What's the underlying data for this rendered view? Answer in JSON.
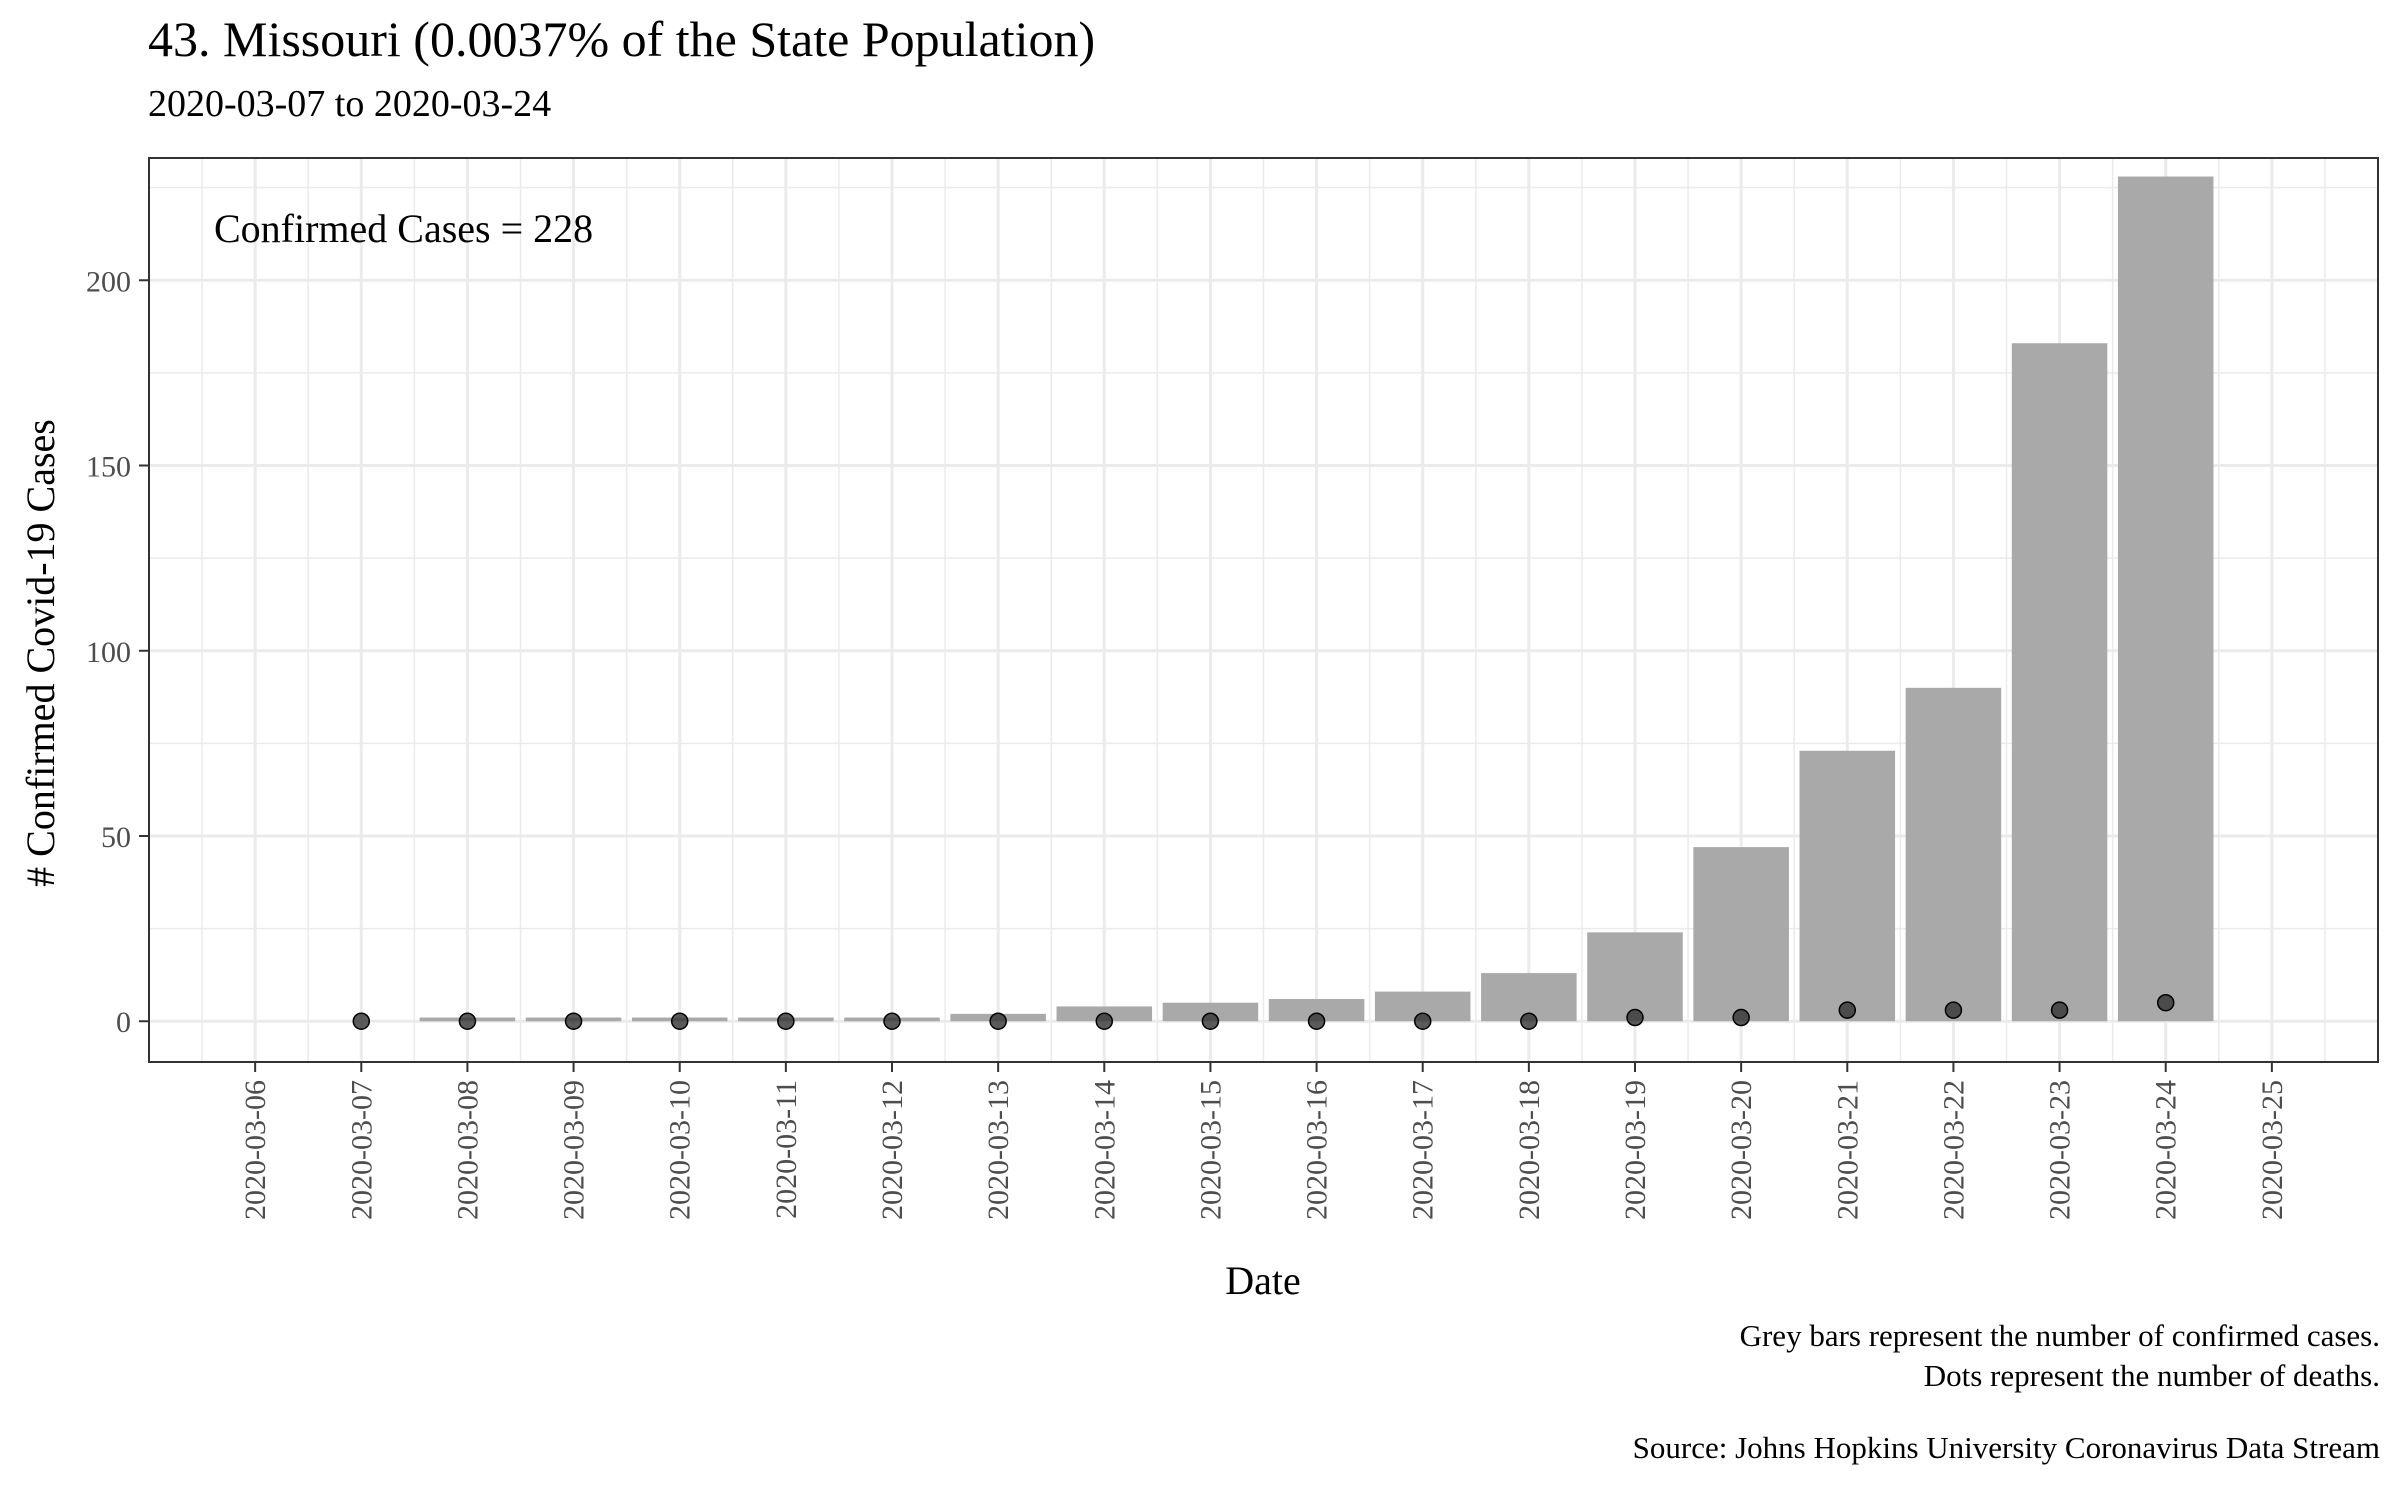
{
  "chart_data": {
    "type": "bar",
    "title": "43. Missouri (0.0037% of the State Population)",
    "subtitle": "2020-03-07 to 2020-03-24",
    "xlabel": "Date",
    "ylabel": "# Confirmed Covid-19 Cases",
    "annotation": "Confirmed Cases = 228",
    "ylim": [
      -11,
      233
    ],
    "yticks": [
      0,
      50,
      100,
      150,
      200
    ],
    "xlim": [
      "2020-03-05",
      "2020-03-26"
    ],
    "xticks": [
      "2020-03-06",
      "2020-03-07",
      "2020-03-08",
      "2020-03-09",
      "2020-03-10",
      "2020-03-11",
      "2020-03-12",
      "2020-03-13",
      "2020-03-14",
      "2020-03-15",
      "2020-03-16",
      "2020-03-17",
      "2020-03-18",
      "2020-03-19",
      "2020-03-20",
      "2020-03-21",
      "2020-03-22",
      "2020-03-23",
      "2020-03-24",
      "2020-03-25"
    ],
    "categories": [
      "2020-03-07",
      "2020-03-08",
      "2020-03-09",
      "2020-03-10",
      "2020-03-11",
      "2020-03-12",
      "2020-03-13",
      "2020-03-14",
      "2020-03-15",
      "2020-03-16",
      "2020-03-17",
      "2020-03-18",
      "2020-03-19",
      "2020-03-20",
      "2020-03-21",
      "2020-03-22",
      "2020-03-23",
      "2020-03-24"
    ],
    "series": [
      {
        "type": "bar",
        "values": [
          0,
          1,
          1,
          1,
          1,
          1,
          2,
          4,
          5,
          6,
          8,
          13,
          24,
          47,
          73,
          90,
          183,
          228
        ]
      },
      {
        "type": "scatter",
        "values": [
          0,
          0,
          0,
          0,
          0,
          0,
          0,
          0,
          0,
          0,
          0,
          0,
          1,
          1,
          3,
          3,
          3,
          5
        ]
      }
    ],
    "grid": true,
    "colors": {
      "bar": "#a9a9a9",
      "dot": "#333333",
      "grid": "#ebebeb",
      "panel_border": "#333333",
      "tick_label": "#4d4d4d"
    }
  },
  "caption_lines": [
    "Grey bars represent the number of confirmed cases.",
    "Dots represent the number of deaths."
  ],
  "source": "Source: Johns Hopkins University Coronavirus Data Stream"
}
